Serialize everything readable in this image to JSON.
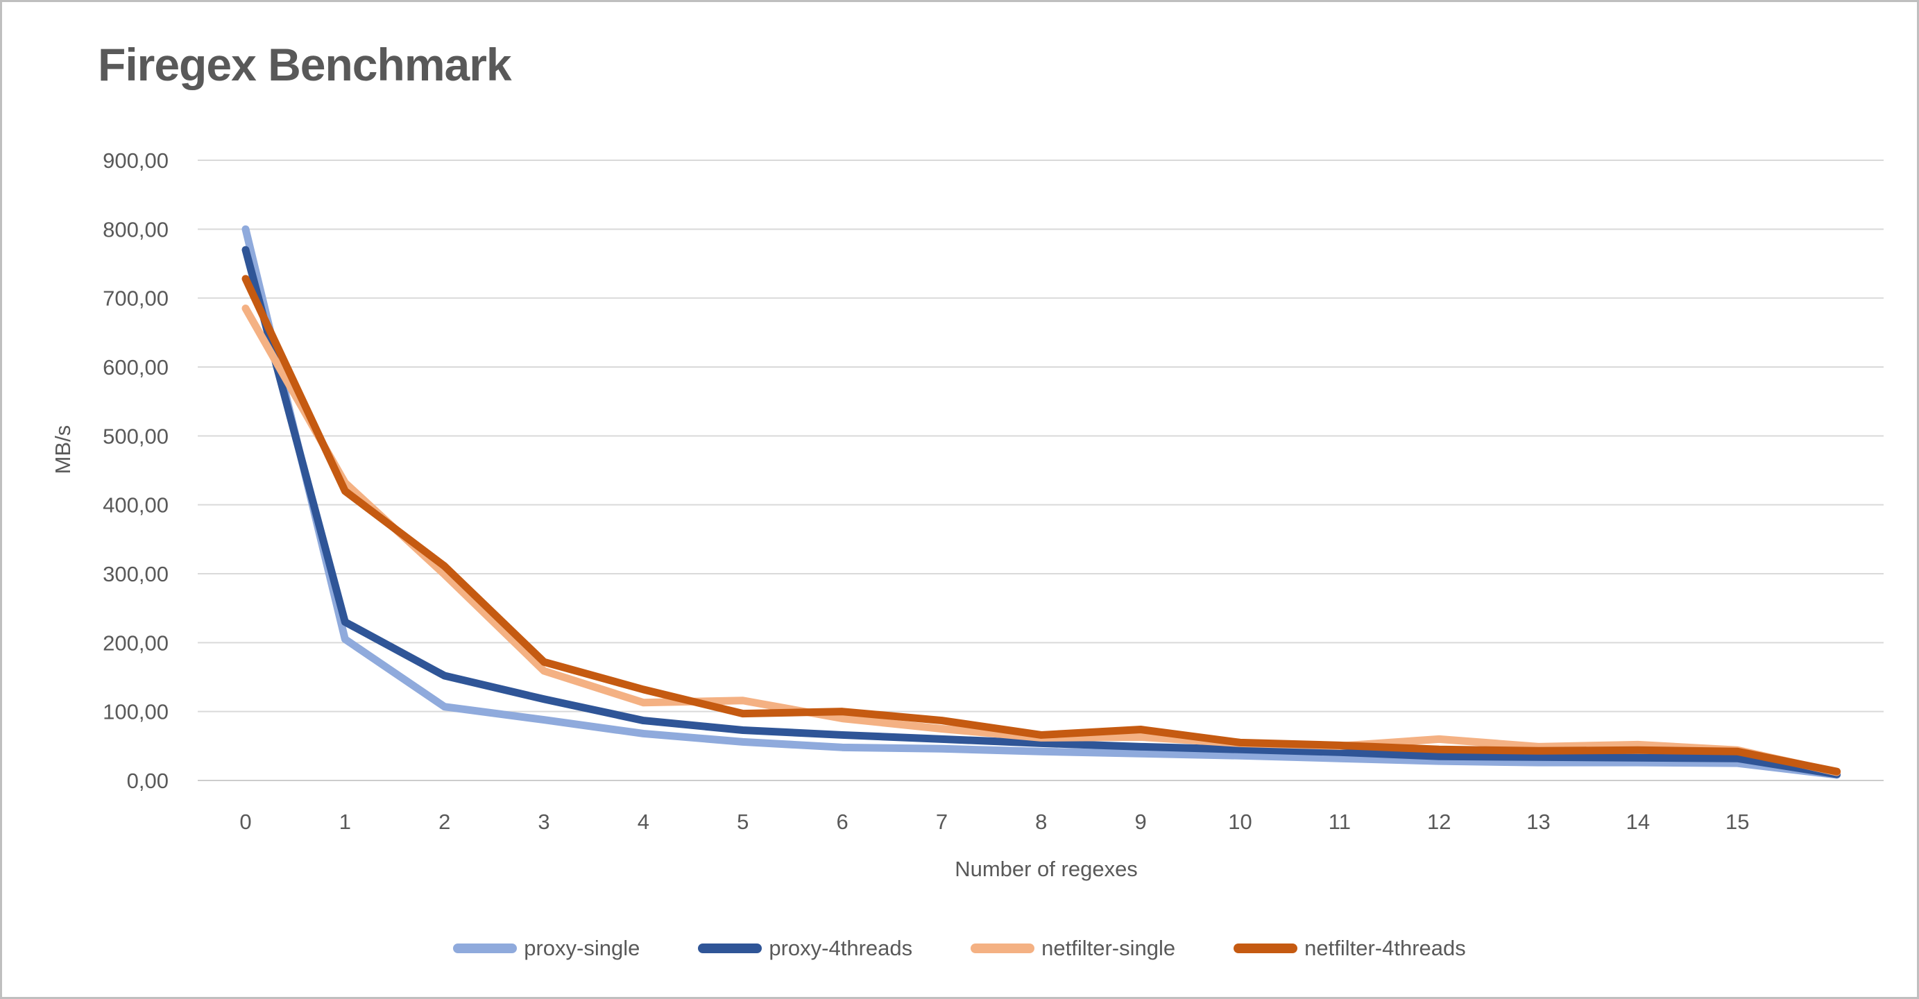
{
  "title": "Firegex Benchmark",
  "colors": {
    "text": "#595959",
    "gridline": "#D9D9D9",
    "axis_line": "#CCCCCC"
  },
  "chart_data": {
    "type": "line",
    "title": "Firegex Benchmark",
    "xlabel": "Number of regexes",
    "ylabel": "MB/s",
    "x": [
      0,
      1,
      2,
      3,
      4,
      5,
      6,
      7,
      8,
      9,
      10,
      11,
      12,
      13,
      14,
      15,
      16
    ],
    "x_tick_labels": [
      "0",
      "1",
      "2",
      "3",
      "4",
      "5",
      "6",
      "7",
      "8",
      "9",
      "10",
      "11",
      "12",
      "13",
      "14",
      "15"
    ],
    "ylim": [
      0,
      900
    ],
    "y_tick_step": 100,
    "y_tick_labels": [
      "0,00",
      "100,00",
      "200,00",
      "300,00",
      "400,00",
      "500,00",
      "600,00",
      "700,00",
      "800,00",
      "900,00"
    ],
    "grid": "horizontal",
    "legend_position": "bottom",
    "series": [
      {
        "name": "proxy-single",
        "color": "#8FAADC",
        "values": [
          800,
          205,
          107,
          88,
          68,
          56,
          48,
          46,
          42,
          39,
          36,
          32,
          28,
          26,
          26,
          25,
          8
        ]
      },
      {
        "name": "proxy-4threads",
        "color": "#2F5597",
        "values": [
          770,
          230,
          152,
          118,
          87,
          73,
          66,
          60,
          54,
          49,
          45,
          41,
          35,
          34,
          33,
          32,
          9
        ]
      },
      {
        "name": "netfilter-single",
        "color": "#F4B183",
        "values": [
          685,
          432,
          299,
          159,
          113,
          116,
          90,
          75,
          62,
          63,
          54,
          50,
          60,
          49,
          52,
          44,
          12
        ]
      },
      {
        "name": "netfilter-4threads",
        "color": "#C55A11",
        "values": [
          728,
          420,
          311,
          172,
          132,
          97,
          100,
          87,
          66,
          74,
          55,
          51,
          45,
          43,
          44,
          42,
          13
        ]
      }
    ]
  }
}
